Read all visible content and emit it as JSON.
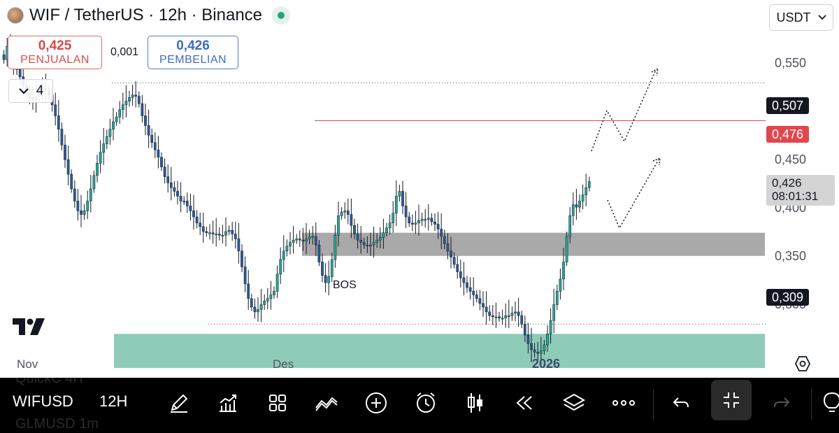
{
  "header": {
    "title": "WIF / TetherUS · 12h · Binance",
    "currency": "USDT"
  },
  "trade": {
    "sell_price": "0,425",
    "sell_label": "PENJUALAN",
    "spread": "0,001",
    "buy_price": "0,426",
    "buy_label": "PEMBELIAN"
  },
  "indicators_collapse": {
    "count": "4"
  },
  "colors": {
    "up": "#26a69a",
    "down": "#2a5c9a",
    "demand_zone": "#8ecbb9",
    "supply_zone": "#a9a9a9",
    "resistance_line": "#e0474c"
  },
  "chart_data": {
    "type": "candlestick",
    "ylim": [
      0.265,
      0.575
    ],
    "y_ticks": [
      "0,550",
      "0,450",
      "0,400",
      "0,350",
      "0,300"
    ],
    "x_ticks": [
      "Nov",
      "Des",
      "2026"
    ],
    "levels": [
      {
        "label": "0,507",
        "value": 0.507,
        "style": "dotted"
      },
      {
        "label": "0,476",
        "value": 0.476,
        "style": "solid-red"
      },
      {
        "label": "0,309",
        "value": 0.309,
        "style": "dotted"
      }
    ],
    "current": {
      "price": "0,426",
      "countdown": "08:01:31"
    },
    "zones": [
      {
        "name": "supply-demand-flip",
        "from": 0.365,
        "to": 0.384
      },
      {
        "name": "demand",
        "from": 0.273,
        "to": 0.301
      }
    ],
    "annotation": "BOS",
    "closes": [
      0.526,
      0.537,
      0.531,
      0.524,
      0.518,
      0.512,
      0.505,
      0.498,
      0.495,
      0.493,
      0.496,
      0.5,
      0.503,
      0.501,
      0.497,
      0.489,
      0.48,
      0.469,
      0.456,
      0.444,
      0.432,
      0.42,
      0.41,
      0.402,
      0.399,
      0.402,
      0.41,
      0.42,
      0.431,
      0.441,
      0.45,
      0.457,
      0.463,
      0.469,
      0.475,
      0.479,
      0.485,
      0.489,
      0.492,
      0.495,
      0.497,
      0.496,
      0.49,
      0.48,
      0.472,
      0.464,
      0.458,
      0.452,
      0.446,
      0.438,
      0.43,
      0.425,
      0.421,
      0.418,
      0.414,
      0.41,
      0.41,
      0.406,
      0.402,
      0.397,
      0.392,
      0.389,
      0.385,
      0.384,
      0.384,
      0.383,
      0.383,
      0.382,
      0.382,
      0.385,
      0.386,
      0.383,
      0.379,
      0.369,
      0.356,
      0.342,
      0.33,
      0.323,
      0.319,
      0.321,
      0.325,
      0.328,
      0.33,
      0.333,
      0.336,
      0.35,
      0.362,
      0.369,
      0.373,
      0.376,
      0.378,
      0.379,
      0.378,
      0.377,
      0.379,
      0.381,
      0.381,
      0.374,
      0.36,
      0.349,
      0.343,
      0.348,
      0.362,
      0.382,
      0.398,
      0.401,
      0.402,
      0.399,
      0.39,
      0.383,
      0.378,
      0.376,
      0.374,
      0.373,
      0.374,
      0.376,
      0.378,
      0.38,
      0.384,
      0.388,
      0.392,
      0.4,
      0.414,
      0.418,
      0.406,
      0.397,
      0.392,
      0.391,
      0.392,
      0.394,
      0.395,
      0.395,
      0.396,
      0.393,
      0.391,
      0.387,
      0.381,
      0.375,
      0.369,
      0.364,
      0.358,
      0.352,
      0.347,
      0.343,
      0.339,
      0.336,
      0.333,
      0.33,
      0.326,
      0.323,
      0.319,
      0.316,
      0.315,
      0.315,
      0.314,
      0.314,
      0.316,
      0.316,
      0.318,
      0.319,
      0.316,
      0.309,
      0.3,
      0.293,
      0.288,
      0.286,
      0.285,
      0.287,
      0.292,
      0.301,
      0.312,
      0.325,
      0.336,
      0.346,
      0.36,
      0.381,
      0.398,
      0.407,
      0.405,
      0.41,
      0.415,
      0.421,
      0.426
    ]
  },
  "toolbar": {
    "symbol": "WIFUSD",
    "interval": "12H",
    "ghost_prev": "QuickC 4H",
    "ghost_next": "GLMUSD 1m"
  }
}
